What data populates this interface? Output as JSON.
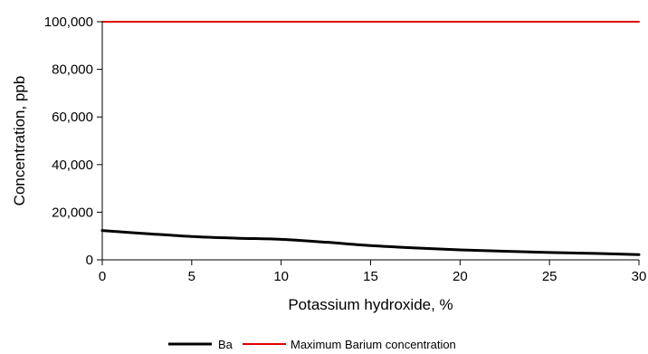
{
  "chart_data": {
    "type": "line",
    "title": "",
    "xlabel": "Potassium hydroxide, %",
    "ylabel": "Concentration, ppb",
    "xlim": [
      0,
      30
    ],
    "ylim": [
      0,
      100000
    ],
    "x_ticks": [
      0,
      5,
      10,
      15,
      20,
      25,
      30
    ],
    "x_tick_labels": [
      "0",
      "5",
      "10",
      "15",
      "20",
      "25",
      "30"
    ],
    "y_ticks": [
      0,
      20000,
      40000,
      60000,
      80000,
      100000
    ],
    "y_tick_labels": [
      "0",
      "20,000",
      "40,000",
      "60,000",
      "80,000",
      "100,000"
    ],
    "grid": false,
    "legend_position": "bottom",
    "series": [
      {
        "name": "Ba",
        "color": "#000000",
        "x": [
          0,
          2.5,
          5,
          7.5,
          10,
          12.5,
          15,
          17.5,
          20,
          22.5,
          25,
          27.5,
          30
        ],
        "y": [
          12300,
          11000,
          9800,
          9100,
          8600,
          7400,
          6000,
          5000,
          4200,
          3600,
          3100,
          2700,
          2200
        ]
      },
      {
        "name": "Maximum Barium concentration",
        "color": "#e00000",
        "x": [
          0,
          30
        ],
        "y": [
          100000,
          100000
        ]
      }
    ]
  }
}
